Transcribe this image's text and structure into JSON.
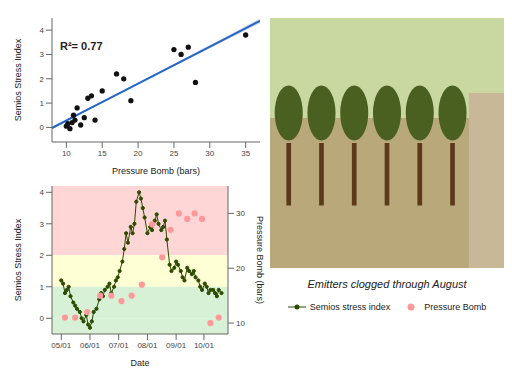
{
  "chart_data": [
    {
      "type": "scatter",
      "xlabel": "Pressure Bomb (bars)",
      "ylabel": "Semios Stress Index",
      "xlim": [
        8,
        37
      ],
      "ylim": [
        -0.6,
        4.5
      ],
      "xticks": [
        10,
        15,
        20,
        25,
        30,
        35
      ],
      "yticks": [
        0,
        1,
        2,
        3,
        4
      ],
      "annotations": [
        "R²= 0.77"
      ],
      "series": [
        {
          "type": "area",
          "color": "gray",
          "x": [
            8,
            12,
            16,
            20,
            24,
            28,
            32,
            37
          ],
          "lower": [
            -0.073,
            0.547,
            1.161,
            1.766,
            2.363,
            2.957,
            3.55,
            4.289
          ],
          "upper": [
            0.026,
            0.622,
            1.224,
            1.835,
            2.454,
            3.076,
            3.699,
            4.48
          ]
        },
        {
          "type": "line",
          "color": "#2266cc",
          "x": [
            8,
            12,
            16,
            20,
            24,
            28,
            32,
            37
          ],
          "values": [
            -0.024,
            0.584,
            1.192,
            1.8,
            2.408,
            3.017,
            3.625,
            4.385
          ]
        },
        {
          "type": "scatter",
          "color": "#111111",
          "x": [
            10,
            10.2,
            10.5,
            10.8,
            11,
            11.2,
            11.5,
            12,
            12.5,
            13,
            13.5,
            14,
            15,
            17,
            18,
            19,
            25,
            26,
            27,
            28,
            35
          ],
          "values": [
            0.05,
            0.15,
            -0.05,
            0.2,
            0.5,
            0.3,
            0.8,
            0.1,
            0.4,
            1.2,
            1.3,
            0.3,
            1.5,
            2.2,
            2.0,
            1.1,
            3.2,
            3.0,
            3.3,
            1.85,
            3.8
          ]
        }
      ]
    },
    {
      "type": "line",
      "xlabel": "Date",
      "ylabel": "Semios Stress Index",
      "y2label": "Pressure Bomb (bars)",
      "xlim": [
        110,
        300
      ],
      "xticks": [
        {
          "value": 120,
          "label": "05/01"
        },
        {
          "value": 151,
          "label": "06/01"
        },
        {
          "value": 182,
          "label": "07/01"
        },
        {
          "value": 213,
          "label": "08/01"
        },
        {
          "value": 244,
          "label": "09/01"
        },
        {
          "value": 274,
          "label": "10/01"
        }
      ],
      "ylim": [
        -0.5,
        4.2
      ],
      "yticks": [
        0,
        1,
        2,
        3,
        4
      ],
      "y2lim": [
        8,
        35
      ],
      "y2ticks": [
        10,
        20,
        30
      ],
      "zones": [
        {
          "from": 2,
          "to": 4.2,
          "color": "#ffcccc"
        },
        {
          "from": 1,
          "to": 2,
          "color": "#ffffcc"
        },
        {
          "from": 0,
          "to": 1,
          "color": "#cceecc"
        },
        {
          "from": -0.5,
          "to": 0,
          "color": "#cceecc"
        }
      ],
      "legend": "right",
      "annotations": [
        "Emitters clogged through August"
      ],
      "series": [
        {
          "name": "Semios stress index",
          "type": "line",
          "marker": "circle",
          "color": "#2d4a00",
          "x": [
            120,
            122,
            124,
            126,
            128,
            130,
            133,
            135,
            137,
            140,
            142,
            144,
            147,
            149,
            151,
            153,
            155,
            158,
            161,
            163,
            165,
            167,
            170,
            172,
            174,
            177,
            179,
            181,
            183,
            186,
            188,
            190,
            192,
            195,
            197,
            199,
            201,
            204,
            206,
            208,
            210,
            213,
            216,
            218,
            221,
            223,
            225,
            228,
            230,
            232,
            234,
            237,
            239,
            242,
            244,
            246,
            249,
            251,
            253,
            256,
            258,
            261,
            263,
            265,
            268,
            270,
            272,
            275,
            277,
            279,
            281,
            284,
            286,
            288,
            290,
            293
          ],
          "values": [
            1.2,
            1.1,
            0.8,
            0.9,
            1.0,
            0.7,
            0.5,
            0.4,
            0.3,
            0.2,
            0.0,
            -0.1,
            0.1,
            -0.2,
            -0.3,
            -0.1,
            0.2,
            0.3,
            0.6,
            0.8,
            0.7,
            0.9,
            1.0,
            1.1,
            0.8,
            1.0,
            1.2,
            1.3,
            1.5,
            1.8,
            2.2,
            2.7,
            2.4,
            2.9,
            2.7,
            3.0,
            3.7,
            4.0,
            3.8,
            3.5,
            3.2,
            2.7,
            2.9,
            2.8,
            3.1,
            3.3,
            3.0,
            2.8,
            2.9,
            3.1,
            2.5,
            1.7,
            1.5,
            1.6,
            1.8,
            1.7,
            1.5,
            1.3,
            1.2,
            1.6,
            1.5,
            1.4,
            1.5,
            1.3,
            1.2,
            1.0,
            0.9,
            1.1,
            1.0,
            0.8,
            0.9,
            0.9,
            0.8,
            0.7,
            0.9,
            0.8
          ]
        },
        {
          "name": "Pressure Bomb",
          "type": "scatter",
          "marker": "circle",
          "color": "#ff9999",
          "axis": "y2",
          "x": [
            124,
            135,
            148,
            162,
            174,
            185,
            196,
            207,
            218,
            229,
            238,
            247,
            256,
            264,
            272,
            281,
            290
          ],
          "values": [
            11,
            11,
            12,
            15,
            15,
            14,
            15,
            17,
            28,
            22,
            27,
            30,
            29,
            30,
            29,
            10,
            11
          ]
        }
      ]
    }
  ]
}
